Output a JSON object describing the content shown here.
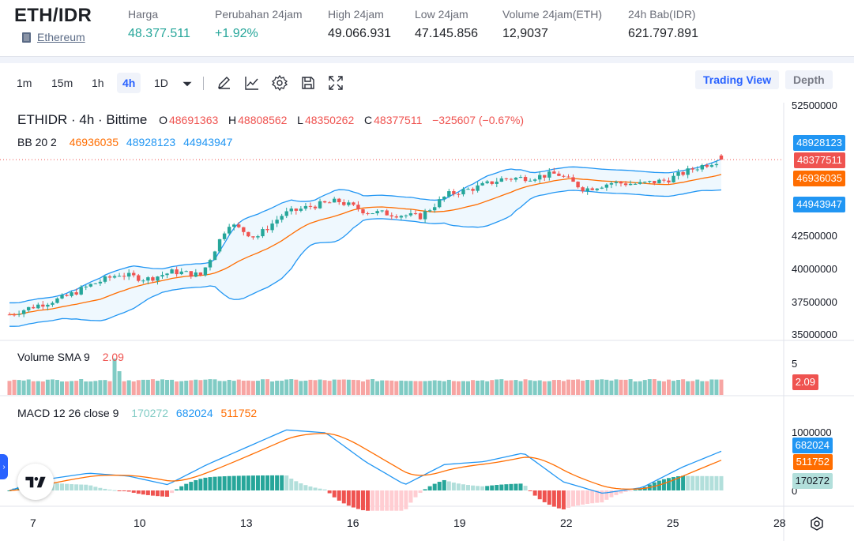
{
  "header": {
    "pair": "ETH/IDR",
    "coin_link": "Ethereum",
    "stats": [
      {
        "label": "Harga",
        "value": "48.377.511",
        "color": "#26a69a"
      },
      {
        "label": "Perubahan 24jam",
        "value": "+1.92%",
        "color": "#26a69a"
      },
      {
        "label": "High 24jam",
        "value": "49.066.931",
        "color": "#131722"
      },
      {
        "label": "Low 24jam",
        "value": "47.145.856",
        "color": "#131722"
      },
      {
        "label": "Volume 24jam(ETH)",
        "value": "12,9037",
        "color": "#131722"
      },
      {
        "label": "24h Bab(IDR)",
        "value": "621.797.891",
        "color": "#131722"
      }
    ]
  },
  "toolbar": {
    "timeframes": [
      "1m",
      "15m",
      "1h",
      "4h",
      "1D"
    ],
    "active_timeframe": "4h",
    "tools": [
      "chevron-down-icon",
      "pencil-icon",
      "line-chart-icon",
      "gear-icon",
      "save-icon",
      "fullscreen-icon"
    ],
    "trading_view": "Trading View",
    "depth": "Depth"
  },
  "legend": {
    "symbol": "ETHIDR · 4h · Bittime",
    "o_label": "O",
    "o_value": "48691363",
    "h_label": "H",
    "h_value": "48808562",
    "l_label": "L",
    "l_value": "48350262",
    "c_label": "C",
    "c_value": "48377511",
    "change": "−325607 (−0.67%)",
    "bb_label": "BB 20 2",
    "bb_mid": "46936035",
    "bb_upper": "48928123",
    "bb_lower": "44943947",
    "vol_label": "Volume SMA 9",
    "vol_value": "2.09",
    "macd_label": "MACD 12 26 close 9",
    "macd_hist": "170272",
    "macd_line": "682024",
    "macd_signal": "511752"
  },
  "price_axis": {
    "ticks": [
      "52500000",
      "42500000",
      "40000000",
      "37500000",
      "35000000"
    ],
    "tags": {
      "upper": "48928123",
      "last": "48377511",
      "mid": "46936035",
      "lower": "44943947"
    }
  },
  "volume_axis": {
    "ticks": [
      "5"
    ],
    "tag": "2.09"
  },
  "macd_axis": {
    "ticks": [
      "1000000",
      "0"
    ],
    "tags": [
      "682024",
      "511752",
      "170272"
    ]
  },
  "time_axis": [
    "7",
    "10",
    "13",
    "16",
    "19",
    "22",
    "25",
    "28"
  ],
  "colors": {
    "up": "#26a69a",
    "down": "#ef5350",
    "bb_band": "#2196f3",
    "bb_mid": "#ff6d00",
    "macd": "#2196f3",
    "signal": "#ff6d00",
    "hist_up": "#26a69a",
    "hist_up_light": "#b2dfdb",
    "hist_down": "#ef5350",
    "hist_down_light": "#ffcdd2"
  },
  "chart_data": {
    "type": "candlestick",
    "series_anchor_price": [
      36500000,
      37200000,
      37800000,
      38800000,
      39600000,
      39200000,
      39800000,
      39500000,
      43500000,
      42400000,
      44200000,
      44800000,
      45200000,
      44400000,
      44200000,
      44000000,
      45700000,
      46200000,
      46900000,
      47000000,
      47300000,
      46100000,
      46600000,
      46500000,
      46800000,
      47700000,
      48400000
    ],
    "macd_anchor": [
      0,
      200000,
      300000,
      250000,
      100000,
      450000,
      750000,
      1050000,
      1000000,
      500000,
      100000,
      450000,
      500000,
      650000,
      150000,
      -50000,
      50000,
      400000,
      680000
    ]
  }
}
